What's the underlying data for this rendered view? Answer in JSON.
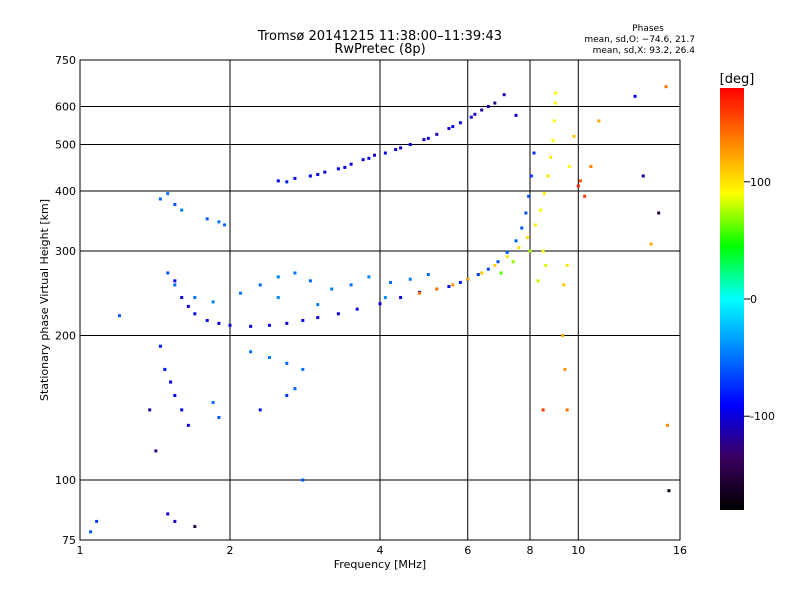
{
  "chart_data": {
    "type": "scatter",
    "title": "Tromsø 20141215 11:38:00–11:39:43",
    "subtitle": "RwPretec (8p)",
    "xlabel": "Frequency [MHz]",
    "ylabel": "Stationary phase Virtual Height [km]",
    "x_scale": "log",
    "y_scale": "log",
    "xlim": [
      1,
      16
    ],
    "ylim": [
      75,
      750
    ],
    "x_ticks": [
      1,
      2,
      4,
      6,
      8,
      10,
      16
    ],
    "y_ticks": [
      75,
      100,
      200,
      300,
      400,
      500,
      600,
      750
    ],
    "grid": true,
    "stats": {
      "title": "Phases",
      "o_line": "mean, sd,O: −74.6, 21.7",
      "x_line": "mean, sd,X:  93.2, 26.4"
    },
    "colorbar": {
      "label": "[deg]",
      "range": [
        -180,
        180
      ],
      "ticks": [
        100,
        0,
        -100
      ],
      "colors": [
        "#000000",
        "#3a0060",
        "#0000ff",
        "#0080ff",
        "#00ffff",
        "#00ff00",
        "#ffff00",
        "#ff8000",
        "#ff0000"
      ]
    },
    "series": [
      {
        "points": [
          [
            2.5,
            420,
            -90
          ],
          [
            2.7,
            425,
            -85
          ],
          [
            2.9,
            430,
            -95
          ],
          [
            3.1,
            438,
            -100
          ],
          [
            3.3,
            445,
            -90
          ],
          [
            3.5,
            455,
            -95
          ],
          [
            3.7,
            465,
            -100
          ],
          [
            3.9,
            475,
            -105
          ],
          [
            4.1,
            480,
            -95
          ],
          [
            4.3,
            488,
            -100
          ],
          [
            4.6,
            500,
            -95
          ],
          [
            4.9,
            512,
            -105
          ],
          [
            5.2,
            525,
            -110
          ],
          [
            5.5,
            540,
            -100
          ],
          [
            5.8,
            555,
            -95
          ],
          [
            6.1,
            570,
            -100
          ],
          [
            6.4,
            590,
            -115
          ],
          [
            6.8,
            610,
            -120
          ],
          [
            7.1,
            635,
            -110
          ],
          [
            2.6,
            418,
            -80
          ],
          [
            3.0,
            433,
            -88
          ],
          [
            3.4,
            448,
            -92
          ],
          [
            3.8,
            468,
            -97
          ],
          [
            4.4,
            492,
            -102
          ],
          [
            5.0,
            515,
            -98
          ],
          [
            5.6,
            545,
            -93
          ],
          [
            6.2,
            578,
            -108
          ],
          [
            6.6,
            600,
            -112
          ]
        ]
      },
      {
        "points": [
          [
            1.55,
            260,
            -95
          ],
          [
            1.6,
            240,
            -100
          ],
          [
            1.65,
            230,
            -98
          ],
          [
            1.7,
            222,
            -92
          ],
          [
            1.8,
            215,
            -95
          ],
          [
            1.9,
            212,
            -97
          ],
          [
            2.0,
            210,
            -100
          ],
          [
            2.2,
            209,
            -98
          ],
          [
            2.4,
            210,
            -96
          ],
          [
            2.6,
            212,
            -100
          ],
          [
            2.8,
            215,
            -95
          ],
          [
            3.0,
            218,
            -97
          ],
          [
            3.3,
            222,
            -99
          ],
          [
            3.6,
            227,
            -96
          ],
          [
            4.0,
            233,
            -98
          ],
          [
            4.4,
            240,
            -95
          ],
          [
            4.8,
            246,
            -92
          ],
          [
            5.2,
            250,
            -88
          ],
          [
            5.5,
            253,
            -85
          ],
          [
            5.8,
            258,
            -80
          ],
          [
            6.0,
            262,
            -75
          ],
          [
            6.3,
            268,
            -70
          ],
          [
            6.6,
            275,
            -66
          ],
          [
            6.9,
            285,
            -62
          ],
          [
            7.2,
            298,
            -60
          ],
          [
            7.5,
            315,
            -58
          ],
          [
            7.7,
            335,
            -60
          ],
          [
            7.85,
            360,
            -62
          ],
          [
            7.95,
            390,
            -65
          ],
          [
            8.05,
            430,
            -70
          ],
          [
            8.15,
            480,
            -75
          ]
        ]
      },
      {
        "points": [
          [
            4.8,
            245,
            140
          ],
          [
            5.2,
            250,
            135
          ],
          [
            5.6,
            255,
            130
          ],
          [
            6.0,
            262,
            120
          ],
          [
            6.4,
            270,
            110
          ],
          [
            6.8,
            280,
            105
          ],
          [
            7.2,
            292,
            100
          ],
          [
            7.6,
            305,
            100
          ],
          [
            7.9,
            320,
            100
          ],
          [
            8.2,
            340,
            95
          ],
          [
            8.4,
            365,
            90
          ],
          [
            8.55,
            395,
            95
          ],
          [
            8.7,
            430,
            100
          ],
          [
            8.8,
            470,
            95
          ],
          [
            8.9,
            510,
            90
          ],
          [
            8.95,
            560,
            92
          ],
          [
            9.0,
            610,
            95
          ],
          [
            8.5,
            300,
            90
          ],
          [
            8.6,
            280,
            85
          ],
          [
            8.3,
            260,
            80
          ],
          [
            7.0,
            270,
            60
          ],
          [
            7.4,
            285,
            70
          ],
          [
            8.0,
            300,
            75
          ]
        ]
      },
      {
        "points": [
          [
            1.5,
            270,
            -60
          ],
          [
            1.55,
            255,
            -55
          ],
          [
            1.7,
            240,
            -50
          ],
          [
            1.85,
            235,
            -45
          ],
          [
            2.1,
            245,
            -50
          ],
          [
            2.3,
            255,
            -55
          ],
          [
            2.5,
            265,
            -45
          ],
          [
            2.7,
            270,
            -50
          ],
          [
            2.9,
            260,
            -55
          ],
          [
            3.2,
            250,
            -48
          ],
          [
            3.5,
            255,
            -52
          ],
          [
            3.8,
            265,
            -45
          ],
          [
            4.2,
            258,
            -50
          ],
          [
            4.6,
            262,
            -47
          ],
          [
            5.0,
            268,
            -52
          ],
          [
            1.45,
            385,
            -55
          ],
          [
            1.5,
            395,
            -50
          ],
          [
            1.55,
            375,
            -60
          ],
          [
            1.6,
            365,
            -45
          ],
          [
            1.8,
            350,
            -60
          ],
          [
            1.9,
            345,
            -50
          ],
          [
            1.95,
            340,
            -55
          ],
          [
            2.2,
            185,
            -50
          ],
          [
            2.4,
            180,
            -45
          ],
          [
            2.6,
            175,
            -55
          ],
          [
            2.8,
            170,
            -50
          ],
          [
            2.5,
            240,
            -40
          ],
          [
            3.0,
            232,
            -45
          ],
          [
            4.1,
            240,
            -42
          ]
        ]
      },
      {
        "points": [
          [
            1.2,
            220,
            -60
          ],
          [
            1.45,
            190,
            -80
          ],
          [
            1.48,
            170,
            -85
          ],
          [
            1.52,
            160,
            -90
          ],
          [
            1.55,
            150,
            -95
          ],
          [
            1.6,
            140,
            -90
          ],
          [
            1.65,
            130,
            -100
          ],
          [
            1.38,
            140,
            -120
          ],
          [
            1.42,
            115,
            -130
          ],
          [
            1.5,
            85,
            -100
          ],
          [
            1.55,
            82,
            -110
          ],
          [
            1.7,
            80,
            -150
          ],
          [
            1.05,
            78,
            -60
          ],
          [
            1.08,
            82,
            -70
          ],
          [
            1.85,
            145,
            -50
          ],
          [
            1.9,
            135,
            -60
          ],
          [
            2.3,
            140,
            -80
          ],
          [
            2.6,
            150,
            -70
          ],
          [
            2.7,
            155,
            -55
          ],
          [
            2.8,
            100,
            -60
          ]
        ]
      },
      {
        "points": [
          [
            9.3,
            200,
            120
          ],
          [
            9.4,
            170,
            130
          ],
          [
            9.5,
            140,
            140
          ],
          [
            9.35,
            255,
            110
          ],
          [
            9.5,
            280,
            100
          ],
          [
            9.6,
            450,
            90
          ],
          [
            9.8,
            520,
            110
          ],
          [
            10.1,
            420,
            150
          ],
          [
            10.3,
            390,
            160
          ],
          [
            10.6,
            450,
            135
          ],
          [
            11.0,
            560,
            120
          ],
          [
            13.0,
            630,
            -90
          ],
          [
            13.5,
            430,
            -120
          ],
          [
            14.0,
            310,
            120
          ],
          [
            14.5,
            360,
            -150
          ],
          [
            15.0,
            660,
            140
          ],
          [
            15.1,
            130,
            130
          ],
          [
            15.2,
            95,
            -170
          ],
          [
            10.0,
            410,
            170
          ],
          [
            9.0,
            640,
            90
          ],
          [
            7.5,
            575,
            -100
          ],
          [
            8.5,
            140,
            160
          ]
        ]
      }
    ]
  }
}
